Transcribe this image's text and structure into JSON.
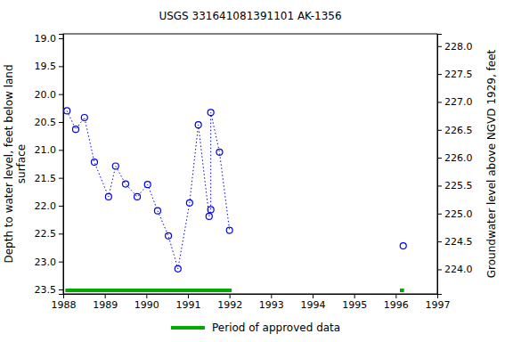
{
  "chart_data": {
    "type": "line",
    "title": "USGS 331641081391101 AK-1356",
    "y_label": [
      "Depth to water level, feet below land",
      "surface"
    ],
    "y2_label": "Groundwater level above NGVD 1929, feet",
    "x": [
      1988.09,
      1988.3,
      1988.51,
      1988.75,
      1989.09,
      1989.26,
      1989.5,
      1989.78,
      1990.03,
      1990.27,
      1990.53,
      1990.76,
      1991.04,
      1991.25,
      1991.51,
      1991.55,
      1991.55,
      1991.76,
      1992.0,
      null,
      1996.18
    ],
    "series": [
      {
        "color": "#0000ff",
        "marker": "circle",
        "line_style": "dotted",
        "values": [
          20.3,
          20.63,
          20.42,
          21.22,
          21.84,
          21.29,
          21.61,
          21.84,
          21.62,
          22.09,
          22.54,
          23.13,
          21.95,
          20.55,
          22.19,
          22.07,
          20.33,
          21.04,
          22.44,
          null,
          22.72
        ]
      },
      {
        "name": "Period of approved data",
        "type": "range",
        "color": "#00aa00",
        "values": [
          [
            1988.05,
            1992.05
          ],
          [
            1996.1,
            1996.2
          ]
        ]
      }
    ],
    "xlim": [
      1988,
      1997
    ],
    "xticks": [
      1988,
      1989,
      1990,
      1991,
      1992,
      1993,
      1994,
      1995,
      1996,
      1997
    ],
    "ylim": [
      18.92,
      23.58
    ],
    "yticks": [
      {
        "value": 19,
        "label": "19.0"
      },
      {
        "value": 19.5,
        "label": "19.5"
      },
      {
        "value": 20,
        "label": "20.0"
      },
      {
        "value": 20.5,
        "label": "20.5"
      },
      {
        "value": 21,
        "label": "21.0"
      },
      {
        "value": 21.5,
        "label": "21.5"
      },
      {
        "value": 22,
        "label": "22.0"
      },
      {
        "value": 22.5,
        "label": "22.5"
      },
      {
        "value": 23,
        "label": "23.0"
      },
      {
        "value": 23.5,
        "label": "23.5"
      }
    ],
    "y2lim": [
      228.22,
      223.56
    ],
    "y2ticks": [
      {
        "value": 224,
        "label": "224.0"
      },
      {
        "value": 224.5,
        "label": "224.5"
      },
      {
        "value": 225,
        "label": "225.0"
      },
      {
        "value": 225.5,
        "label": "225.5"
      },
      {
        "value": 226,
        "label": "226.0"
      },
      {
        "value": 226.5,
        "label": "226.5"
      },
      {
        "value": 227,
        "label": "227.0"
      },
      {
        "value": 227.5,
        "label": "227.5"
      },
      {
        "value": 228,
        "label": "228.0"
      }
    ],
    "legend": "bottom",
    "grid": false
  }
}
